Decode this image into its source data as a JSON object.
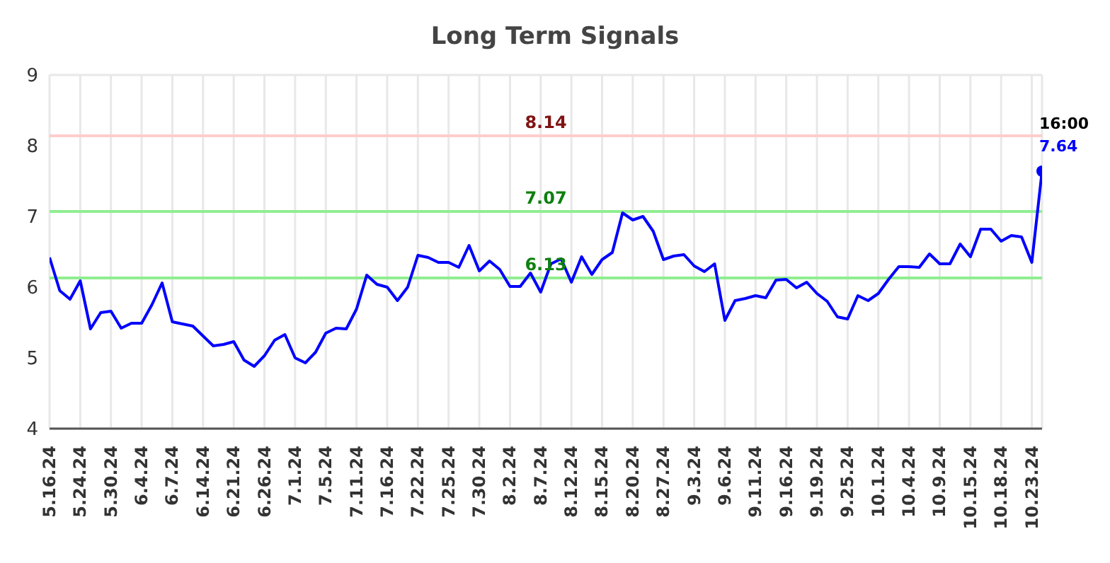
{
  "chart_data": {
    "type": "line",
    "title": "Long Term Signals",
    "categories": [
      "5.16.24",
      null,
      null,
      "5.24.24",
      null,
      null,
      "5.30.24",
      null,
      null,
      "6.4.24",
      null,
      null,
      "6.7.24",
      null,
      null,
      "6.14.24",
      null,
      null,
      "6.21.24",
      null,
      null,
      "6.26.24",
      null,
      null,
      "7.1.24",
      null,
      null,
      "7.5.24",
      null,
      null,
      "7.11.24",
      null,
      null,
      "7.16.24",
      null,
      null,
      "7.22.24",
      null,
      null,
      "7.25.24",
      null,
      null,
      "7.30.24",
      null,
      null,
      "8.2.24",
      null,
      null,
      "8.7.24",
      null,
      null,
      "8.12.24",
      null,
      null,
      "8.15.24",
      null,
      null,
      "8.20.24",
      null,
      null,
      "8.27.24",
      null,
      null,
      "9.3.24",
      null,
      null,
      "9.6.24",
      null,
      null,
      "9.11.24",
      null,
      null,
      "9.16.24",
      null,
      null,
      "9.19.24",
      null,
      null,
      "9.25.24",
      null,
      null,
      "10.1.24",
      null,
      null,
      "10.4.24",
      null,
      null,
      "10.9.24",
      null,
      null,
      "10.15.24",
      null,
      null,
      "10.18.24",
      null,
      null,
      "10.23.24",
      null
    ],
    "series": [
      {
        "color": "#0000ff",
        "values": [
          6.42,
          5.95,
          5.83,
          6.09,
          5.41,
          5.64,
          5.66,
          5.42,
          5.49,
          5.49,
          5.75,
          6.06,
          5.51,
          5.48,
          5.45,
          5.31,
          5.17,
          5.19,
          5.23,
          4.97,
          4.88,
          5.03,
          5.25,
          5.33,
          5.0,
          4.93,
          5.08,
          5.35,
          5.42,
          5.41,
          5.69,
          6.17,
          6.04,
          6.0,
          5.81,
          6.0,
          6.45,
          6.42,
          6.35,
          6.35,
          6.28,
          6.59,
          6.23,
          6.37,
          6.25,
          6.01,
          6.01,
          6.2,
          5.93,
          6.33,
          6.4,
          6.07,
          6.43,
          6.18,
          6.39,
          6.49,
          7.05,
          6.95,
          7.0,
          6.79,
          6.39,
          6.44,
          6.46,
          6.3,
          6.22,
          6.33,
          5.53,
          5.81,
          5.84,
          5.88,
          5.85,
          6.1,
          6.11,
          5.99,
          6.07,
          5.91,
          5.8,
          5.58,
          5.55,
          5.88,
          5.81,
          5.91,
          6.11,
          6.29,
          6.29,
          6.28,
          6.47,
          6.33,
          6.33,
          6.61,
          6.43,
          6.82,
          6.82,
          6.65,
          6.73,
          6.71,
          6.35,
          7.64
        ]
      },
      {
        "type": "scatter",
        "color": "#0000ff",
        "values": [
          null,
          null,
          null,
          null,
          null,
          null,
          null,
          null,
          null,
          null,
          null,
          null,
          null,
          null,
          null,
          null,
          null,
          null,
          null,
          null,
          null,
          null,
          null,
          null,
          null,
          null,
          null,
          null,
          null,
          null,
          null,
          null,
          null,
          null,
          null,
          null,
          null,
          null,
          null,
          null,
          null,
          null,
          null,
          null,
          null,
          null,
          null,
          null,
          null,
          null,
          null,
          null,
          null,
          null,
          null,
          null,
          null,
          null,
          null,
          null,
          null,
          null,
          null,
          null,
          null,
          null,
          null,
          null,
          null,
          null,
          null,
          null,
          null,
          null,
          null,
          null,
          null,
          null,
          null,
          null,
          null,
          null,
          null,
          null,
          null,
          null,
          null,
          null,
          null,
          null,
          null,
          null,
          null,
          null,
          null,
          null,
          null,
          7.64
        ],
        "value_labels": [
          null,
          null,
          null,
          null,
          null,
          null,
          null,
          null,
          null,
          null,
          null,
          null,
          null,
          null,
          null,
          null,
          null,
          null,
          null,
          null,
          null,
          null,
          null,
          null,
          null,
          null,
          null,
          null,
          null,
          null,
          null,
          null,
          null,
          null,
          null,
          null,
          null,
          null,
          null,
          null,
          null,
          null,
          null,
          null,
          null,
          null,
          null,
          null,
          null,
          null,
          null,
          null,
          null,
          null,
          null,
          null,
          null,
          null,
          null,
          null,
          null,
          null,
          null,
          null,
          null,
          null,
          null,
          null,
          null,
          null,
          null,
          null,
          null,
          null,
          null,
          null,
          null,
          null,
          null,
          null,
          null,
          null,
          null,
          null,
          null,
          null,
          null,
          null,
          null,
          null,
          null,
          null,
          null,
          null,
          null,
          null,
          null,
          "7.64"
        ]
      }
    ],
    "ylim": [
      4,
      9
    ],
    "yticks": [
      4,
      5,
      6,
      7,
      8,
      9
    ],
    "grid": true,
    "line_style": "solid",
    "ref_lines": [
      {
        "axis": "y",
        "value": 8.14,
        "label": "8.14",
        "color": "#ffcccc"
      },
      {
        "axis": "y",
        "value": 7.07,
        "label": "7.07",
        "color": "#90ee90"
      },
      {
        "axis": "y",
        "value": 6.13,
        "label": "6.13",
        "color": "#90ee90"
      }
    ],
    "annotations": [
      "16:00"
    ]
  }
}
